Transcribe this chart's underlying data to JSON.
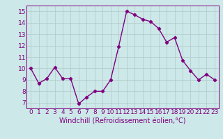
{
  "x": [
    0,
    1,
    2,
    3,
    4,
    5,
    6,
    7,
    8,
    9,
    10,
    11,
    12,
    13,
    14,
    15,
    16,
    17,
    18,
    19,
    20,
    21,
    22,
    23
  ],
  "y": [
    10.0,
    8.7,
    9.1,
    10.1,
    9.1,
    9.1,
    6.9,
    7.5,
    8.0,
    8.0,
    9.0,
    11.9,
    15.0,
    14.7,
    14.3,
    14.1,
    13.5,
    12.3,
    12.7,
    10.7,
    9.8,
    9.0,
    9.5,
    9.0
  ],
  "line_color": "#800080",
  "marker": "D",
  "marker_size": 2.2,
  "background_color": "#cce8e8",
  "grid_color": "#b0c8c8",
  "xlabel": "Windchill (Refroidissement éolien,°C)",
  "xlabel_fontsize": 7,
  "ytick_labels": [
    "7",
    "8",
    "9",
    "10",
    "11",
    "12",
    "13",
    "14",
    "15"
  ],
  "yticks": [
    7,
    8,
    9,
    10,
    11,
    12,
    13,
    14,
    15
  ],
  "ylim": [
    6.5,
    15.5
  ],
  "xlim": [
    -0.5,
    23.5
  ],
  "xtick_labels": [
    "0",
    "1",
    "2",
    "3",
    "4",
    "5",
    "6",
    "7",
    "8",
    "9",
    "10",
    "11",
    "12",
    "13",
    "14",
    "15",
    "16",
    "17",
    "18",
    "19",
    "20",
    "21",
    "22",
    "23"
  ],
  "tick_fontsize": 6.5,
  "line_width": 1.0
}
